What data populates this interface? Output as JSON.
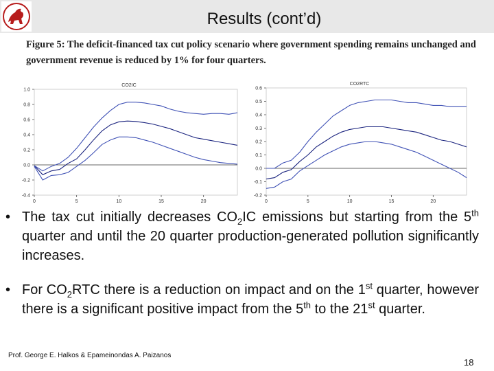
{
  "slide": {
    "title": "Results (cont’d)",
    "caption_label": "Figure 5",
    "caption_text": ": The deficit-financed tax cut policy scenario where government spending remains unchanged and government revenue is reduced by 1% for four quarters.",
    "bullet_1": {
      "part_a": "The tax cut initially decreases CO",
      "sub": "2",
      "part_b": "IC emissions but starting from the 5",
      "sup": "th",
      "part_c": " quarter and until the 20 quarter production-generated pollution significantly increases."
    },
    "bullet_2": {
      "part_a": "For CO",
      "sub": "2",
      "part_b": "RTC there is a reduction on impact and  on the 1",
      "sup1": "st",
      "part_c": " quarter, however there is a significant positive impact from the 5",
      "sup2": "th",
      "part_d": " to the 21",
      "sup3": "st",
      "part_e": " quarter."
    },
    "footer_author": "Prof. George E. Halkos & Epameinondas A. Paizanos",
    "page_number": "18",
    "bullet_symbol": "•"
  },
  "colors": {
    "series": "#1a237e",
    "bounds": "#3f51b5",
    "zero": "#333333",
    "header": "#e8e8e8"
  },
  "chart_data": [
    {
      "type": "line",
      "title": "CO2IC",
      "x": [
        0,
        1,
        2,
        3,
        4,
        5,
        6,
        7,
        8,
        9,
        10,
        11,
        12,
        13,
        14,
        15,
        16,
        17,
        18,
        19,
        20,
        21,
        22,
        23,
        24
      ],
      "series": [
        {
          "values": [
            -0.01,
            -0.13,
            -0.08,
            -0.06,
            0.02,
            0.08,
            0.2,
            0.33,
            0.45,
            0.53,
            0.57,
            0.58,
            0.575,
            0.56,
            0.54,
            0.51,
            0.48,
            0.44,
            0.4,
            0.36,
            0.34,
            0.32,
            0.3,
            0.28,
            0.26
          ]
        },
        {
          "values": [
            -0.01,
            -0.08,
            -0.02,
            0.02,
            0.1,
            0.22,
            0.36,
            0.5,
            0.62,
            0.72,
            0.8,
            0.83,
            0.83,
            0.82,
            0.8,
            0.78,
            0.74,
            0.71,
            0.69,
            0.68,
            0.67,
            0.68,
            0.68,
            0.67,
            0.69
          ]
        },
        {
          "values": [
            -0.02,
            -0.2,
            -0.14,
            -0.13,
            -0.1,
            -0.02,
            0.06,
            0.16,
            0.27,
            0.33,
            0.37,
            0.37,
            0.36,
            0.33,
            0.3,
            0.26,
            0.22,
            0.18,
            0.14,
            0.1,
            0.07,
            0.05,
            0.03,
            0.02,
            0.01
          ]
        }
      ],
      "ylim": [
        -0.4,
        1.0
      ],
      "yticks": [
        "1.0",
        "0.8",
        "0.6",
        "0.4",
        "0.2",
        "0.0",
        "-0.2",
        "-0.4"
      ],
      "xticks": [
        "0",
        "5",
        "10",
        "15",
        "20"
      ]
    },
    {
      "type": "line",
      "title": "CO2RTC",
      "x": [
        0,
        1,
        2,
        3,
        4,
        5,
        6,
        7,
        8,
        9,
        10,
        11,
        12,
        13,
        14,
        15,
        16,
        17,
        18,
        19,
        20,
        21,
        22,
        23,
        24
      ],
      "series": [
        {
          "values": [
            -0.08,
            -0.07,
            -0.03,
            -0.01,
            0.05,
            0.1,
            0.16,
            0.2,
            0.24,
            0.27,
            0.29,
            0.3,
            0.31,
            0.31,
            0.31,
            0.3,
            0.29,
            0.28,
            0.27,
            0.25,
            0.23,
            0.21,
            0.2,
            0.18,
            0.16
          ]
        },
        {
          "values": [
            0.0,
            0.0,
            0.04,
            0.06,
            0.12,
            0.2,
            0.27,
            0.33,
            0.39,
            0.43,
            0.47,
            0.49,
            0.5,
            0.51,
            0.51,
            0.51,
            0.5,
            0.49,
            0.49,
            0.48,
            0.47,
            0.47,
            0.46,
            0.46,
            0.46
          ]
        },
        {
          "values": [
            -0.15,
            -0.14,
            -0.1,
            -0.08,
            -0.02,
            0.02,
            0.06,
            0.1,
            0.13,
            0.16,
            0.18,
            0.19,
            0.2,
            0.2,
            0.19,
            0.18,
            0.16,
            0.14,
            0.12,
            0.09,
            0.06,
            0.03,
            0.0,
            -0.03,
            -0.07
          ]
        }
      ],
      "ylim": [
        -0.2,
        0.6
      ],
      "yticks": [
        "0.6",
        "0.5",
        "0.4",
        "0.3",
        "0.2",
        "0.1",
        "0.0",
        "-0.1",
        "-0.2"
      ],
      "xticks": [
        "0",
        "5",
        "10",
        "15",
        "20"
      ]
    }
  ]
}
